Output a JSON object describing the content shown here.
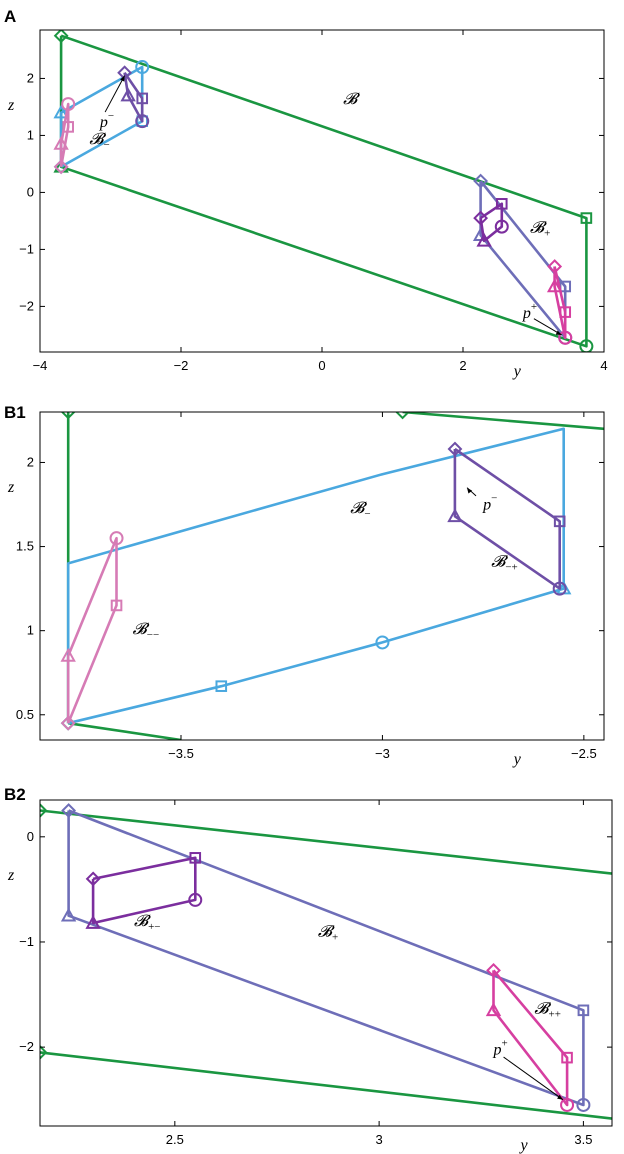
{
  "chart_data": [
    {
      "type": "line",
      "panel": "A",
      "xlabel": "y",
      "ylabel": "z",
      "xlim": [
        -4,
        4
      ],
      "ylim": [
        -2.8,
        2.85
      ],
      "xticks": [
        -4,
        -2,
        0,
        2,
        4
      ],
      "xtick_labels": [
        "−4",
        "−2",
        "0",
        "2",
        "4"
      ],
      "yticks": [
        -2,
        -1,
        0,
        1,
        2
      ],
      "ytick_labels": [
        "−2",
        "−1",
        "0",
        "1",
        "2"
      ],
      "grid": false,
      "series": [
        {
          "color": "#1a9641",
          "points": [
            [
              -3.7,
              2.75
            ],
            [
              3.75,
              -0.45
            ],
            [
              3.75,
              -2.7
            ],
            [
              -3.7,
              0.45
            ],
            [
              -3.7,
              2.75
            ]
          ]
        },
        {
          "color": "#4aa8df",
          "points": [
            [
              -3.7,
              0.45
            ],
            [
              -2.55,
              1.25
            ],
            [
              -2.55,
              2.2
            ],
            [
              -3.7,
              1.4
            ],
            [
              -3.7,
              0.45
            ]
          ]
        },
        {
          "color": "#d67bb5",
          "points": [
            [
              -3.7,
              0.45
            ],
            [
              -3.6,
              1.15
            ],
            [
              -3.6,
              1.55
            ],
            [
              -3.7,
              0.85
            ],
            [
              -3.7,
              0.45
            ]
          ]
        },
        {
          "color": "#6e4fa6",
          "points": [
            [
              -2.8,
              2.1
            ],
            [
              -2.55,
              1.65
            ],
            [
              -2.55,
              1.25
            ],
            [
              -2.75,
              1.7
            ],
            [
              -2.8,
              2.1
            ]
          ]
        },
        {
          "color": "#6e6eb8",
          "points": [
            [
              2.25,
              0.2
            ],
            [
              3.45,
              -1.65
            ],
            [
              3.45,
              -2.55
            ],
            [
              2.25,
              -0.75
            ],
            [
              2.25,
              0.2
            ]
          ]
        },
        {
          "color": "#7b2e9e",
          "points": [
            [
              2.25,
              -0.45
            ],
            [
              2.55,
              -0.2
            ],
            [
              2.55,
              -0.6
            ],
            [
              2.3,
              -0.85
            ],
            [
              2.25,
              -0.45
            ]
          ]
        },
        {
          "color": "#d63fa0",
          "points": [
            [
              3.3,
              -1.3
            ],
            [
              3.45,
              -2.1
            ],
            [
              3.45,
              -2.55
            ],
            [
              3.3,
              -1.65
            ],
            [
              3.3,
              -1.3
            ]
          ]
        }
      ],
      "annotations": [
        {
          "text": "𝓑",
          "subscript": "",
          "superscript": "",
          "x": 0.3,
          "y": 1.55
        },
        {
          "text": "𝓑",
          "subscript": "−",
          "superscript": "",
          "x": -3.3,
          "y": 0.85
        },
        {
          "text": "𝓑",
          "subscript": "+",
          "superscript": "",
          "x": 2.95,
          "y": -0.7
        },
        {
          "text": "p",
          "subscript": "",
          "superscript": "−",
          "x": -3.15,
          "y": 1.15,
          "arrow_to": [
            -2.8,
            2.05
          ]
        },
        {
          "text": "p",
          "subscript": "",
          "superscript": "+",
          "x": 2.85,
          "y": -2.2,
          "arrow_to": [
            3.4,
            -2.5
          ]
        }
      ]
    },
    {
      "type": "line",
      "panel": "B1",
      "xlabel": "y",
      "ylabel": "z",
      "xlim": [
        -3.85,
        -2.45
      ],
      "ylim": [
        0.35,
        2.3
      ],
      "xticks": [
        -3.5,
        -3,
        -2.5
      ],
      "xtick_labels": [
        "−3.5",
        "−3",
        "−2.5"
      ],
      "yticks": [
        0.5,
        1,
        1.5,
        2
      ],
      "ytick_labels": [
        "0.5",
        "1",
        "1.5",
        "2"
      ],
      "grid": false,
      "series": [
        {
          "color": "#1a9641",
          "points": [
            [
              -3.78,
              2.3
            ],
            [
              -3.78,
              0.45
            ]
          ]
        },
        {
          "color": "#1a9641",
          "points": [
            [
              -3.78,
              0.45
            ],
            [
              -3.5,
              0.35
            ]
          ]
        },
        {
          "color": "#1a9641",
          "points": [
            [
              -2.95,
              2.3
            ],
            [
              -2.45,
              2.2
            ]
          ]
        },
        {
          "color": "#4aa8df",
          "points": [
            [
              -3.78,
              0.45
            ],
            [
              -3.4,
              0.67
            ],
            [
              -3.0,
              0.93
            ],
            [
              -2.55,
              1.25
            ],
            [
              -2.55,
              2.2
            ],
            [
              -3.0,
              1.93
            ],
            [
              -3.4,
              1.66
            ],
            [
              -3.78,
              1.4
            ],
            [
              -3.78,
              0.45
            ]
          ]
        },
        {
          "color": "#d67bb5",
          "points": [
            [
              -3.78,
              0.45
            ],
            [
              -3.66,
              1.15
            ],
            [
              -3.66,
              1.55
            ],
            [
              -3.78,
              0.85
            ],
            [
              -3.78,
              0.45
            ]
          ]
        },
        {
          "color": "#6e4fa6",
          "points": [
            [
              -2.82,
              2.08
            ],
            [
              -2.56,
              1.65
            ],
            [
              -2.56,
              1.25
            ],
            [
              -2.82,
              1.68
            ],
            [
              -2.82,
              2.08
            ]
          ]
        }
      ],
      "annotations": [
        {
          "text": "𝓑",
          "subscript": "−",
          "superscript": "",
          "x": -3.08,
          "y": 1.7
        },
        {
          "text": "𝓑",
          "subscript": "−−",
          "superscript": "",
          "x": -3.62,
          "y": 0.98
        },
        {
          "text": "𝓑",
          "subscript": "−+",
          "superscript": "",
          "x": -2.73,
          "y": 1.38
        },
        {
          "text": "p",
          "subscript": "",
          "superscript": "−",
          "x": -2.75,
          "y": 1.72,
          "arrow_to": [
            -2.79,
            1.85
          ]
        }
      ]
    },
    {
      "type": "line",
      "panel": "B2",
      "xlabel": "y",
      "ylabel": "z",
      "xlim": [
        2.17,
        3.57
      ],
      "ylim": [
        -2.75,
        0.35
      ],
      "xticks": [
        2.5,
        3,
        3.5
      ],
      "xtick_labels": [
        "2.5",
        "3",
        "3.5"
      ],
      "yticks": [
        -2,
        -1,
        0
      ],
      "ytick_labels": [
        "−2",
        "−1",
        "0"
      ],
      "grid": false,
      "series": [
        {
          "color": "#1a9641",
          "points": [
            [
              2.17,
              0.25
            ],
            [
              3.57,
              -0.35
            ]
          ]
        },
        {
          "color": "#1a9641",
          "points": [
            [
              2.17,
              -2.05
            ],
            [
              3.57,
              -2.68
            ]
          ]
        },
        {
          "color": "#6e6eb8",
          "points": [
            [
              2.24,
              0.25
            ],
            [
              3.5,
              -1.65
            ],
            [
              3.5,
              -2.55
            ],
            [
              2.24,
              -0.75
            ],
            [
              2.24,
              0.25
            ]
          ]
        },
        {
          "color": "#7b2e9e",
          "points": [
            [
              2.3,
              -0.4
            ],
            [
              2.55,
              -0.2
            ],
            [
              2.55,
              -0.6
            ],
            [
              2.3,
              -0.82
            ],
            [
              2.3,
              -0.4
            ]
          ]
        },
        {
          "color": "#d63fa0",
          "points": [
            [
              3.28,
              -1.27
            ],
            [
              3.46,
              -2.1
            ],
            [
              3.46,
              -2.55
            ],
            [
              3.28,
              -1.65
            ],
            [
              3.28,
              -1.27
            ]
          ]
        }
      ],
      "annotations": [
        {
          "text": "𝓑",
          "subscript": "+−",
          "superscript": "",
          "x": 2.4,
          "y": -0.85
        },
        {
          "text": "𝓑",
          "subscript": "+",
          "superscript": "",
          "x": 2.85,
          "y": -0.95
        },
        {
          "text": "𝓑",
          "subscript": "++",
          "superscript": "",
          "x": 3.38,
          "y": -1.68
        },
        {
          "text": "p",
          "subscript": "",
          "superscript": "+",
          "x": 3.28,
          "y": -2.07,
          "arrow_to": [
            3.45,
            -2.5
          ]
        }
      ]
    }
  ]
}
